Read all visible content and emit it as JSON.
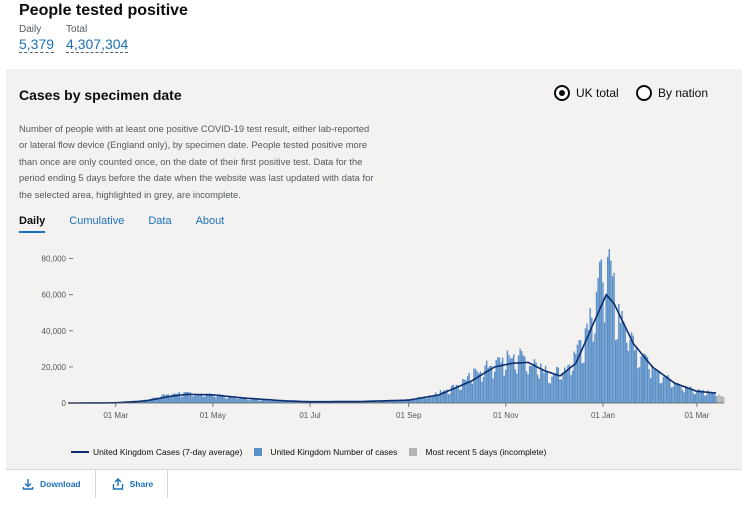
{
  "header": {
    "title": "People tested positive",
    "daily_label": "Daily",
    "daily_value": "5,379",
    "total_label": "Total",
    "total_value": "4,307,304"
  },
  "card": {
    "title": "Cases by specimen date",
    "radio_uk": "UK total",
    "radio_nation": "By nation",
    "selected": "UK total",
    "description": "Number of people with at least one positive COVID-19 test result, either lab-reported or lateral flow device (England only), by specimen date. People tested positive more than once are only counted once, on the date of their first positive test. Data for the period ending 5 days before the date when the website was last updated with data for the selected area, highlighted in grey, are incomplete.",
    "tabs": [
      "Daily",
      "Cumulative",
      "Data",
      "About"
    ],
    "active_tab": "Daily",
    "download_label": "Download",
    "share_label": "Share"
  },
  "colors": {
    "bar": "#5b8fc7",
    "line": "#0c2e6e",
    "incomplete": "#b1b4b6",
    "link": "#1d70b8"
  },
  "chart_data": {
    "type": "bar",
    "y_ticks": [
      "80,000",
      "60,000",
      "40,000",
      "20,000",
      "0"
    ],
    "y_tick_values": [
      80000,
      60000,
      40000,
      20000,
      0
    ],
    "ylim": [
      0,
      82000
    ],
    "x_tick_labels": [
      "01 Mar",
      "01 May",
      "01 Jul",
      "01 Sep",
      "01 Nov",
      "01 Jan",
      "01 Mar"
    ],
    "x_tick_dates": [
      "2020-03-01",
      "2020-05-01",
      "2020-07-01",
      "2020-09-01",
      "2020-11-01",
      "2021-01-01",
      "2021-03-01"
    ],
    "x_range": [
      "2020-01-31",
      "2021-03-18"
    ],
    "incomplete_from": "2021-03-14",
    "daily_series_anchors": [
      {
        "date": "2020-01-31",
        "value": 0
      },
      {
        "date": "2020-03-01",
        "value": 100
      },
      {
        "date": "2020-03-15",
        "value": 800
      },
      {
        "date": "2020-04-01",
        "value": 4200
      },
      {
        "date": "2020-04-10",
        "value": 5200
      },
      {
        "date": "2020-04-20",
        "value": 4600
      },
      {
        "date": "2020-05-01",
        "value": 4500
      },
      {
        "date": "2020-05-15",
        "value": 3000
      },
      {
        "date": "2020-06-01",
        "value": 1800
      },
      {
        "date": "2020-07-01",
        "value": 700
      },
      {
        "date": "2020-08-01",
        "value": 800
      },
      {
        "date": "2020-09-01",
        "value": 1800
      },
      {
        "date": "2020-09-15",
        "value": 4000
      },
      {
        "date": "2020-10-01",
        "value": 9000
      },
      {
        "date": "2020-10-15",
        "value": 17000
      },
      {
        "date": "2020-11-01",
        "value": 23000
      },
      {
        "date": "2020-11-10",
        "value": 25000
      },
      {
        "date": "2020-11-20",
        "value": 19000
      },
      {
        "date": "2020-12-01",
        "value": 15000
      },
      {
        "date": "2020-12-10",
        "value": 19000
      },
      {
        "date": "2020-12-20",
        "value": 35000
      },
      {
        "date": "2020-12-29",
        "value": 60000
      },
      {
        "date": "2021-01-04",
        "value": 75000
      },
      {
        "date": "2021-01-10",
        "value": 50000
      },
      {
        "date": "2021-01-20",
        "value": 32000
      },
      {
        "date": "2021-02-01",
        "value": 20000
      },
      {
        "date": "2021-02-15",
        "value": 10000
      },
      {
        "date": "2021-03-01",
        "value": 6500
      },
      {
        "date": "2021-03-13",
        "value": 5500
      },
      {
        "date": "2021-03-18",
        "value": 3000
      }
    ],
    "average_series_anchors": [
      {
        "date": "2020-01-31",
        "value": 0
      },
      {
        "date": "2020-03-01",
        "value": 100
      },
      {
        "date": "2020-03-20",
        "value": 1200
      },
      {
        "date": "2020-04-05",
        "value": 3800
      },
      {
        "date": "2020-04-15",
        "value": 4800
      },
      {
        "date": "2020-05-01",
        "value": 4500
      },
      {
        "date": "2020-05-20",
        "value": 2800
      },
      {
        "date": "2020-06-15",
        "value": 1200
      },
      {
        "date": "2020-07-01",
        "value": 700
      },
      {
        "date": "2020-08-01",
        "value": 800
      },
      {
        "date": "2020-09-01",
        "value": 1600
      },
      {
        "date": "2020-09-20",
        "value": 4500
      },
      {
        "date": "2020-10-10",
        "value": 12000
      },
      {
        "date": "2020-10-25",
        "value": 20000
      },
      {
        "date": "2020-11-05",
        "value": 22000
      },
      {
        "date": "2020-11-15",
        "value": 22500
      },
      {
        "date": "2020-11-25",
        "value": 18000
      },
      {
        "date": "2020-12-05",
        "value": 15000
      },
      {
        "date": "2020-12-15",
        "value": 22000
      },
      {
        "date": "2020-12-25",
        "value": 42000
      },
      {
        "date": "2021-01-03",
        "value": 60000
      },
      {
        "date": "2021-01-08",
        "value": 55000
      },
      {
        "date": "2021-01-20",
        "value": 33000
      },
      {
        "date": "2021-02-01",
        "value": 20000
      },
      {
        "date": "2021-02-15",
        "value": 11000
      },
      {
        "date": "2021-03-01",
        "value": 6500
      },
      {
        "date": "2021-03-13",
        "value": 5500
      }
    ],
    "legend": [
      "United Kingdom Cases (7-day average)",
      "United Kingdom Number of cases",
      "Most recent 5 days (incomplete)"
    ]
  }
}
